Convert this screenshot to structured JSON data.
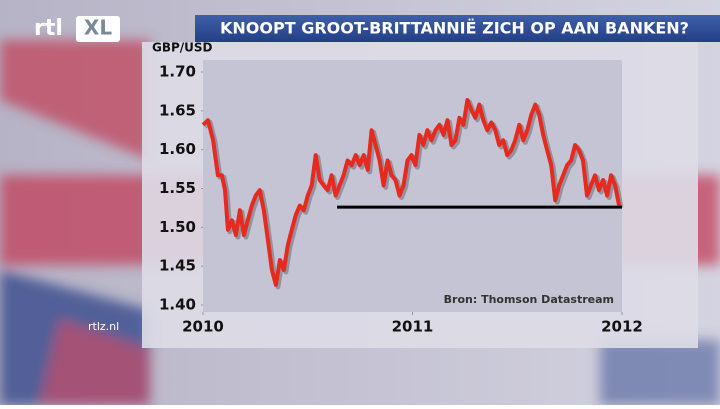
{
  "branding": {
    "channel": "rtl",
    "channel_suffix": "XL",
    "website": "rtlz.nl"
  },
  "chart_data": {
    "type": "line",
    "title": "KNOOPT GROOT-BRITTANNIË ZICH OP AAN BANKEN?",
    "y_label": "GBP/USD",
    "source": "Bron: Thomson Datastream",
    "color": "#e62a1f",
    "x": [
      2010.0,
      2010.024,
      2010.048,
      2010.071,
      2010.09,
      2010.105,
      2010.119,
      2010.138,
      2010.157,
      2010.176,
      2010.195,
      2010.214,
      2010.233,
      2010.252,
      2010.271,
      2010.29,
      2010.31,
      2010.329,
      2010.348,
      2010.367,
      2010.386,
      2010.405,
      2010.424,
      2010.443,
      2010.462,
      2010.481,
      2010.5,
      2010.519,
      2010.538,
      2010.557,
      2010.576,
      2010.595,
      2010.614,
      2010.633,
      2010.652,
      2010.671,
      2010.69,
      2010.71,
      2010.729,
      2010.748,
      2010.767,
      2010.786,
      2010.805,
      2010.824,
      2010.843,
      2010.862,
      2010.881,
      2010.9,
      2010.919,
      2010.938,
      2010.957,
      2010.976,
      2010.995,
      2011.014,
      2011.033,
      2011.052,
      2011.071,
      2011.09,
      2011.11,
      2011.129,
      2011.148,
      2011.167,
      2011.186,
      2011.205,
      2011.224,
      2011.243,
      2011.262,
      2011.281,
      2011.3,
      2011.319,
      2011.338,
      2011.357,
      2011.376,
      2011.395,
      2011.414,
      2011.433,
      2011.452,
      2011.471,
      2011.49,
      2011.51,
      2011.529,
      2011.548,
      2011.567,
      2011.586,
      2011.605,
      2011.624,
      2011.643,
      2011.662,
      2011.681,
      2011.7,
      2011.719,
      2011.738,
      2011.757,
      2011.776,
      2011.795,
      2011.814,
      2011.833,
      2011.852,
      2011.871,
      2011.89,
      2011.91,
      2011.929,
      2011.948,
      2011.967,
      2011.986
    ],
    "values": [
      1.632,
      1.638,
      1.612,
      1.567,
      1.567,
      1.548,
      1.497,
      1.509,
      1.49,
      1.522,
      1.49,
      1.509,
      1.528,
      1.541,
      1.548,
      1.522,
      1.484,
      1.445,
      1.426,
      1.458,
      1.445,
      1.477,
      1.497,
      1.516,
      1.528,
      1.522,
      1.541,
      1.554,
      1.593,
      1.561,
      1.554,
      1.548,
      1.567,
      1.541,
      1.554,
      1.567,
      1.586,
      1.58,
      1.593,
      1.58,
      1.593,
      1.574,
      1.625,
      1.606,
      1.586,
      1.554,
      1.586,
      1.567,
      1.561,
      1.541,
      1.554,
      1.586,
      1.593,
      1.58,
      1.619,
      1.606,
      1.625,
      1.612,
      1.625,
      1.632,
      1.619,
      1.638,
      1.606,
      1.612,
      1.641,
      1.632,
      1.664,
      1.651,
      1.641,
      1.658,
      1.638,
      1.625,
      1.635,
      1.625,
      1.606,
      1.612,
      1.593,
      1.599,
      1.612,
      1.632,
      1.612,
      1.625,
      1.645,
      1.658,
      1.645,
      1.619,
      1.599,
      1.58,
      1.535,
      1.554,
      1.567,
      1.58,
      1.586,
      1.606,
      1.599,
      1.586,
      1.541,
      1.554,
      1.567,
      1.548,
      1.561,
      1.541,
      1.567,
      1.554,
      1.528
    ],
    "support_line": {
      "value": 1.526,
      "x": [
        2010.64,
        2012
      ],
      "color": "#000000"
    },
    "xlim": [
      2010,
      2012
    ],
    "xticks": [
      2010,
      2011,
      2012
    ],
    "ylim": [
      1.4,
      1.7
    ],
    "yticks": [
      {
        "value": 1.4,
        "label": "1.40"
      },
      1.45,
      {
        "value": 1.5,
        "label": "1.50"
      },
      1.55,
      {
        "value": 1.6,
        "label": "1.60"
      },
      1.65,
      {
        "value": 1.7,
        "label": "1.70"
      }
    ]
  }
}
